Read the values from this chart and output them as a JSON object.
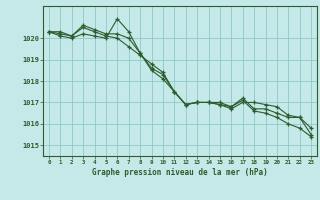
{
  "bg_color": "#c5e8e8",
  "grid_color": "#8ec8c8",
  "line_color": "#2d5c2d",
  "title": "Graphe pression niveau de la mer (hPa)",
  "xlim": [
    -0.5,
    23.5
  ],
  "ylim": [
    1014.5,
    1021.5
  ],
  "yticks": [
    1015,
    1016,
    1017,
    1018,
    1019,
    1020
  ],
  "xticks": [
    0,
    1,
    2,
    3,
    4,
    5,
    6,
    7,
    8,
    9,
    10,
    11,
    12,
    13,
    14,
    15,
    16,
    17,
    18,
    19,
    20,
    21,
    22,
    23
  ],
  "series": [
    [
      1020.3,
      1020.1,
      1020.0,
      1020.2,
      1020.1,
      1020.0,
      1020.9,
      1020.3,
      1019.3,
      1018.5,
      1018.1,
      1017.5,
      1016.9,
      1017.0,
      1017.0,
      1016.9,
      1016.7,
      1017.0,
      1017.0,
      1016.9,
      1016.8,
      1016.4,
      1016.3,
      1015.8
    ],
    [
      1020.3,
      1020.2,
      1020.1,
      1020.5,
      1020.3,
      1020.1,
      1020.0,
      1019.6,
      1019.2,
      1018.8,
      1018.4,
      1017.5,
      1016.9,
      1017.0,
      1017.0,
      1017.0,
      1016.8,
      1017.1,
      1016.6,
      1016.5,
      1016.3,
      1016.0,
      1015.8,
      1015.4
    ],
    [
      1020.3,
      1020.3,
      1020.1,
      1020.6,
      1020.4,
      1020.2,
      1020.2,
      1020.0,
      1019.3,
      1018.6,
      1018.3,
      1017.5,
      1016.9,
      1017.0,
      1017.0,
      1016.9,
      1016.8,
      1017.2,
      1016.7,
      1016.7,
      1016.5,
      1016.3,
      1016.3,
      1015.5
    ]
  ]
}
